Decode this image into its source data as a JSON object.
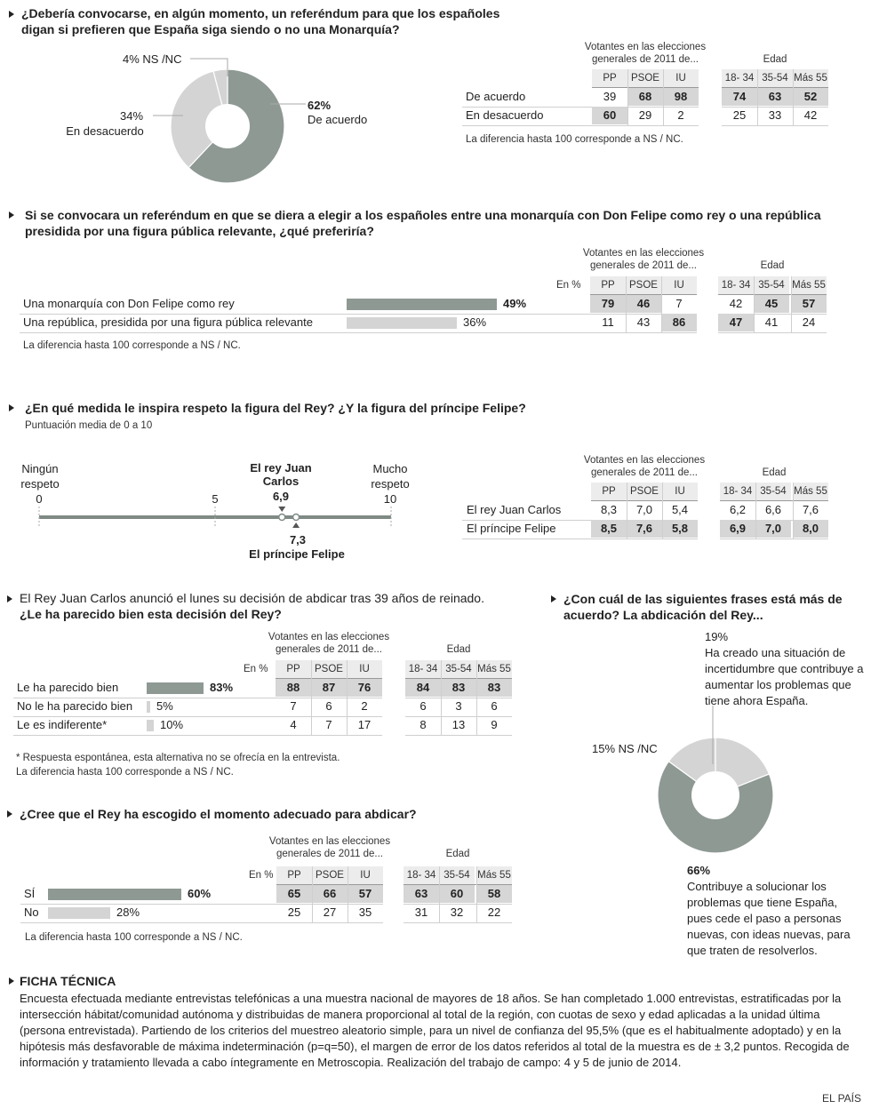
{
  "common": {
    "votantes_header": "Votantes en las elecciones generales de 2011 de...",
    "edad_header": "Edad",
    "parties": [
      "PP",
      "PSOE",
      "IU"
    ],
    "ages": [
      "18- 34",
      "35-54",
      "Más 55"
    ],
    "en_pct": "En %",
    "diff_note": "La diferencia hasta 100 corresponde a NS / NC."
  },
  "q1": {
    "title": "¿Debería convocarse, en algún momento, un referéndum para que los españoles digan si prefieren que España siga siendo o no una Monarquía?",
    "note": "La diferencia hasta 100 corresponde a NS / NC.",
    "rows": [
      {
        "label": "De acuerdo",
        "values": [
          39,
          68,
          98,
          74,
          63,
          52
        ],
        "highlight": [
          false,
          true,
          true,
          true,
          true,
          true
        ]
      },
      {
        "label": "En desacuerdo",
        "values": [
          60,
          29,
          2,
          25,
          33,
          42
        ],
        "highlight": [
          true,
          false,
          false,
          false,
          false,
          false
        ]
      }
    ]
  },
  "q2": {
    "title": "Si se convocara un referéndum en que se diera a elegir a los españoles entre una monarquía con Don Felipe como rey o una república presidida por una figura pública relevante,  ¿qué preferiría?",
    "rows": [
      {
        "label": "Una monarquía con Don Felipe como rey",
        "pct_label": "49%",
        "values": [
          79,
          46,
          7,
          42,
          45,
          57
        ],
        "highlight": [
          true,
          true,
          false,
          false,
          true,
          true
        ]
      },
      {
        "label": "Una república, presidida por una figura pública relevante",
        "pct_label": "36%",
        "values": [
          11,
          43,
          86,
          47,
          41,
          24
        ],
        "highlight": [
          false,
          false,
          true,
          true,
          false,
          false
        ]
      }
    ]
  },
  "q3": {
    "title": "¿En qué medida le inspira respeto la figura del Rey? ¿Y la figura del príncipe Felipe?",
    "subtitle": "Puntuación media de 0 a 10",
    "scale_left": "Ningún respeto",
    "scale_right": "Mucho respeto",
    "ticks": [
      "0",
      "5",
      "10"
    ],
    "rey_label": "El rey Juan Carlos",
    "rey_value": "6,9",
    "felipe_value": "7,3",
    "felipe_label": "El príncipe Felipe",
    "rows": [
      {
        "label": "El rey Juan Carlos",
        "values": [
          "8,3",
          "7,0",
          "5,4",
          "6,2",
          "6,6",
          "7,6"
        ],
        "highlight": [
          false,
          false,
          false,
          false,
          false,
          false
        ]
      },
      {
        "label": "El príncipe Felipe",
        "values": [
          "8,5",
          "7,6",
          "5,8",
          "6,9",
          "7,0",
          "8,0"
        ],
        "highlight": [
          true,
          true,
          true,
          true,
          true,
          true
        ]
      }
    ]
  },
  "q4": {
    "intro": "El Rey Juan Carlos anunció el lunes su decisión de abdicar tras 39 años de reinado.",
    "title": "¿Le ha parecido bien esta decisión del Rey?",
    "footnote": "* Respuesta espontánea, esta alternativa no se ofrecía en la entrevista.",
    "rows": [
      {
        "label": "Le ha parecido bien",
        "pct_label": "83%",
        "values": [
          88,
          87,
          76,
          84,
          83,
          83
        ],
        "highlight": [
          true,
          true,
          true,
          true,
          true,
          true
        ]
      },
      {
        "label": "No le ha parecido bien",
        "pct_label": "5%",
        "values": [
          7,
          6,
          2,
          6,
          3,
          6
        ],
        "highlight": [
          false,
          false,
          false,
          false,
          false,
          false
        ]
      },
      {
        "label": "Le es indiferente*",
        "pct_label": "10%",
        "values": [
          4,
          7,
          17,
          8,
          13,
          9
        ],
        "highlight": [
          false,
          false,
          false,
          false,
          false,
          false
        ]
      }
    ]
  },
  "q5": {
    "title": "¿Cree que el Rey ha escogido el momento adecuado para abdicar?",
    "rows": [
      {
        "label": "SÍ",
        "pct_label": "60%",
        "values": [
          65,
          66,
          57,
          63,
          60,
          58
        ],
        "highlight": [
          true,
          true,
          true,
          true,
          true,
          true
        ]
      },
      {
        "label": "No",
        "pct_label": "28%",
        "values": [
          25,
          27,
          35,
          31,
          32,
          22
        ],
        "highlight": [
          false,
          false,
          false,
          false,
          false,
          false
        ]
      }
    ]
  },
  "q6": {
    "title": "¿Con cuál de las siguientes frases está más de acuerdo? La abdicación del Rey...",
    "label_19_pct": "19%",
    "label_19_text": "Ha creado una situación de incertidumbre que contribuye a aumentar los problemas que tiene ahora España.",
    "label_15": "15% NS /NC",
    "label_66_pct": "66%",
    "label_66_text": "Contribuye a solucionar los problemas que tiene España, pues cede el paso a personas nuevas, con ideas nuevas, para que traten de resolverlos."
  },
  "q1_pie": {
    "label_ns": "4% NS /NC",
    "label_des_pct": "34%",
    "label_des": "En desacuerdo",
    "label_acu_pct": "62%",
    "label_acu": "De acuerdo"
  },
  "ficha": {
    "title": "FICHA TÉCNICA",
    "text": "Encuesta efectuada mediante entrevistas telefónicas a una muestra nacional de mayores de 18 años. Se han completado 1.000 entrevistas, estratificadas por la intersección hábitat/comunidad autónoma y distribuidas de manera proporcional al total de la región, con cuotas de sexo y edad aplicadas a la unidad última (persona entrevistada). Partiendo de los criterios del muestreo aleatorio simple, para un nivel de confianza del 95,5% (que es el habitualmente adoptado) y en la hipótesis más desfavorable de máxima indeterminación (p=q=50), el margen de error de los datos referidos al total de la muestra es de ± 3,2 puntos. Recogida de información  y tratamiento llevada a cabo íntegramente en Metroscopia. Realización del trabajo de campo: 4 y 5 de junio de 2014."
  },
  "source": "EL PAÍS",
  "colors": {
    "dark": "#8e9993",
    "light": "#d4d4d4",
    "mid": "#b9bcba"
  },
  "chart_data": [
    {
      "type": "pie",
      "labels": [
        "De acuerdo",
        "En desacuerdo",
        "NS /NC"
      ],
      "values": [
        62,
        34,
        4
      ]
    },
    {
      "type": "bar",
      "categories": [
        "Una monarquía con Don Felipe como rey",
        "Una república, presidida por una figura pública relevante"
      ],
      "values": [
        49,
        36
      ]
    },
    {
      "type": "scatter",
      "labels": [
        "El rey Juan Carlos",
        "El príncipe Felipe"
      ],
      "values": [
        6.9,
        7.3
      ],
      "xlim": [
        0,
        10
      ]
    },
    {
      "type": "bar",
      "categories": [
        "Le ha parecido bien",
        "No le ha parecido bien",
        "Le es indiferente*"
      ],
      "values": [
        83,
        5,
        10
      ]
    },
    {
      "type": "bar",
      "categories": [
        "SÍ",
        "No"
      ],
      "values": [
        60,
        28
      ]
    },
    {
      "type": "pie",
      "labels": [
        "Contribuye a solucionar los problemas",
        "Ha creado una situación de incertidumbre",
        "NS /NC"
      ],
      "values": [
        66,
        19,
        15
      ]
    }
  ]
}
